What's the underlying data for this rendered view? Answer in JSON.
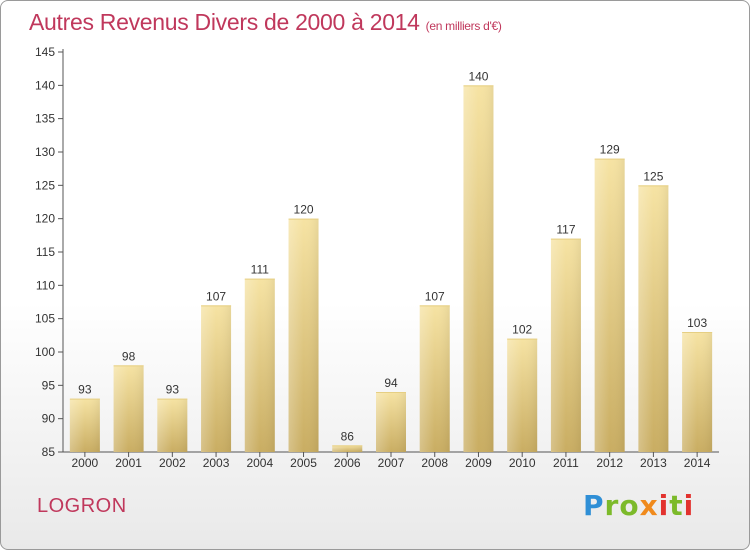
{
  "header": {
    "title": "Autres Revenus Divers de 2000 à 2014",
    "unit": "(en milliers d'€)"
  },
  "footer": {
    "town": "LOGRON",
    "brand": "Proxiti",
    "brand_colors": [
      "#2f8fd6",
      "#7cba2a",
      "#f08a1c",
      "#e2322e"
    ]
  },
  "colors": {
    "title": "#c0385c",
    "bar_light": "#f6e3a3",
    "bar_dark": "#c9ad62"
  },
  "chart_data": {
    "type": "bar",
    "categories": [
      "2000",
      "2001",
      "2002",
      "2003",
      "2004",
      "2005",
      "2006",
      "2007",
      "2008",
      "2009",
      "2010",
      "2011",
      "2012",
      "2013",
      "2014"
    ],
    "values": [
      93,
      98,
      93,
      107,
      111,
      120,
      86,
      94,
      107,
      140,
      102,
      117,
      129,
      125,
      103
    ],
    "title": "Autres Revenus Divers de 2000 à 2014",
    "xlabel": "",
    "ylabel": "",
    "ylim": [
      85,
      145
    ],
    "yticks": [
      85,
      90,
      95,
      100,
      105,
      110,
      115,
      120,
      125,
      130,
      135,
      140,
      145
    ],
    "grid": false,
    "legend": "none"
  }
}
